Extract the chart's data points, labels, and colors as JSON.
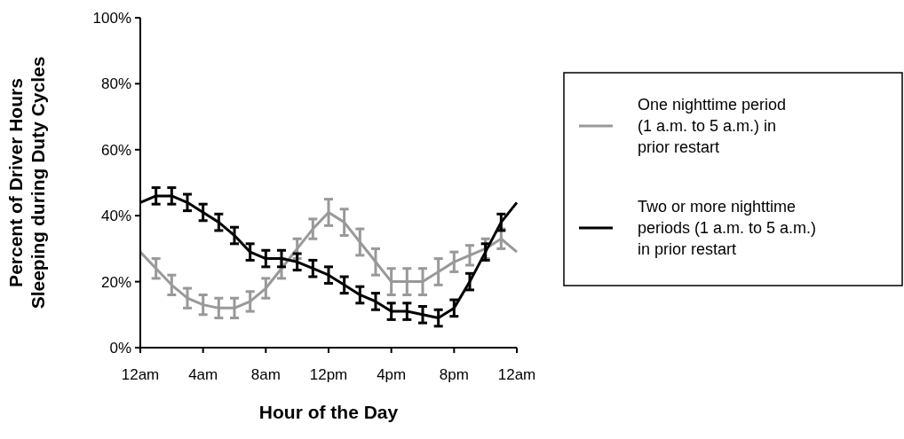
{
  "chart_data": {
    "type": "line",
    "xlabel": "Hour of the Day",
    "ylabel": "Percent of Driver Hours Sleeping during Duty Cycles",
    "categories": [
      "12am",
      null,
      null,
      null,
      "4am",
      null,
      null,
      null,
      "8am",
      null,
      null,
      null,
      "12pm",
      null,
      null,
      null,
      "4pm",
      null,
      null,
      null,
      "8pm",
      null,
      null,
      null,
      "12am"
    ],
    "series": [
      {
        "name": "One nighttime period (1 a.m. to 5 a.m.) in prior restart",
        "color": "#999999",
        "values": [
          29,
          24,
          19,
          15,
          13,
          12,
          12,
          14,
          18,
          24,
          30,
          36,
          41,
          38,
          32,
          26,
          20,
          20,
          20,
          23,
          26,
          28,
          30,
          33,
          29
        ],
        "errors": [
          null,
          3,
          3,
          3,
          3,
          3,
          3,
          3,
          3,
          3,
          3,
          3,
          4,
          4,
          4,
          4,
          4,
          4,
          4,
          4,
          3,
          3,
          3,
          3,
          null
        ]
      },
      {
        "name": "Two or more nighttime periods (1 a.m. to 5 a.m.) in prior restart",
        "color": "#000000",
        "values": [
          44,
          46,
          46,
          44,
          41,
          38,
          34,
          29,
          27,
          27,
          26,
          24,
          22,
          19,
          16,
          14,
          11,
          11,
          10,
          9,
          12,
          20,
          29,
          38,
          44
        ],
        "errors": [
          null,
          2.5,
          2.5,
          2.5,
          2.5,
          2.5,
          2.5,
          2.5,
          2.5,
          2.5,
          2.5,
          2.5,
          2.5,
          2.5,
          2.5,
          2.5,
          2.5,
          2.5,
          2.5,
          2.5,
          2.5,
          2.5,
          2.5,
          2.5,
          null
        ]
      }
    ],
    "ylim": [
      0,
      100
    ],
    "yticks": [
      {
        "value": 0,
        "label": "0%"
      },
      {
        "value": 20,
        "label": "20%"
      },
      {
        "value": 40,
        "label": "40%"
      },
      {
        "value": 60,
        "label": "60%"
      },
      {
        "value": 80,
        "label": "80%"
      },
      {
        "value": 100,
        "label": "100%"
      }
    ],
    "legend": "right",
    "marker": "none",
    "line_style": "solid"
  }
}
